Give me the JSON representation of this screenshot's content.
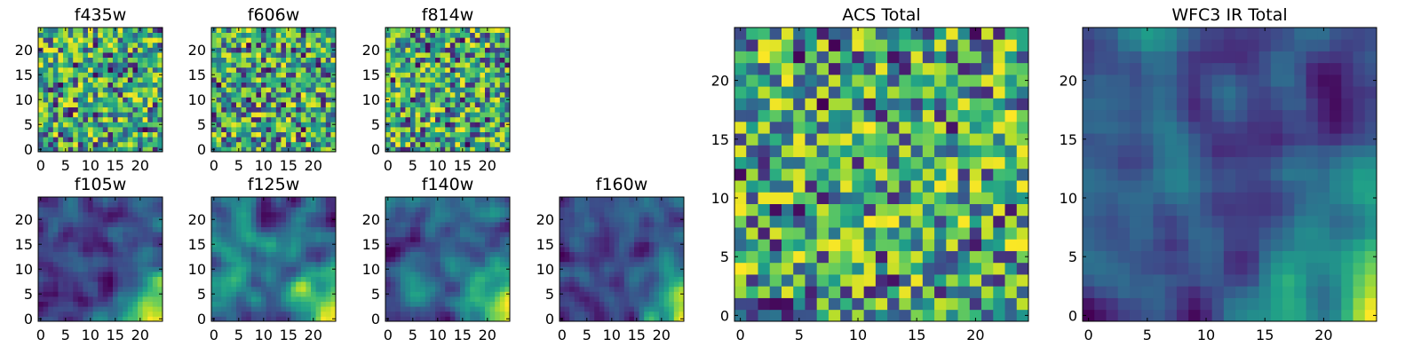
{
  "chart_data": [
    {
      "type": "heatmap",
      "title": "f435w",
      "grid_size": 25,
      "xlim": [
        0,
        24
      ],
      "ylim": [
        0,
        24
      ],
      "x_ticks": [
        "0",
        "5",
        "10",
        "15",
        "20"
      ],
      "y_ticks": [
        "0",
        "5",
        "10",
        "15",
        "20"
      ],
      "colormap": "viridis",
      "texture": "noise",
      "seed": 11
    },
    {
      "type": "heatmap",
      "title": "f606w",
      "grid_size": 25,
      "xlim": [
        0,
        24
      ],
      "ylim": [
        0,
        24
      ],
      "x_ticks": [
        "0",
        "5",
        "10",
        "15",
        "20"
      ],
      "y_ticks": [
        "0",
        "5",
        "10",
        "15",
        "20"
      ],
      "colormap": "viridis",
      "texture": "noise",
      "seed": 23
    },
    {
      "type": "heatmap",
      "title": "f814w",
      "grid_size": 25,
      "xlim": [
        0,
        24
      ],
      "ylim": [
        0,
        24
      ],
      "x_ticks": [
        "0",
        "5",
        "10",
        "15",
        "20"
      ],
      "y_ticks": [
        "0",
        "5",
        "10",
        "15",
        "20"
      ],
      "colormap": "viridis",
      "texture": "noise",
      "seed": 37
    },
    {
      "type": "heatmap",
      "title": "f105w",
      "grid_size": 25,
      "xlim": [
        0,
        24
      ],
      "ylim": [
        0,
        24
      ],
      "x_ticks": [
        "0",
        "5",
        "10",
        "15",
        "20"
      ],
      "y_ticks": [
        "0",
        "5",
        "10",
        "15",
        "20"
      ],
      "colormap": "viridis",
      "texture": "smooth",
      "seed": 41
    },
    {
      "type": "heatmap",
      "title": "f125w",
      "grid_size": 25,
      "xlim": [
        0,
        24
      ],
      "ylim": [
        0,
        24
      ],
      "x_ticks": [
        "0",
        "5",
        "10",
        "15",
        "20"
      ],
      "y_ticks": [
        "0",
        "5",
        "10",
        "15",
        "20"
      ],
      "colormap": "viridis",
      "texture": "smooth",
      "seed": 53
    },
    {
      "type": "heatmap",
      "title": "f140w",
      "grid_size": 25,
      "xlim": [
        0,
        24
      ],
      "ylim": [
        0,
        24
      ],
      "x_ticks": [
        "0",
        "5",
        "10",
        "15",
        "20"
      ],
      "y_ticks": [
        "0",
        "5",
        "10",
        "15",
        "20"
      ],
      "colormap": "viridis",
      "texture": "smooth",
      "seed": 67
    },
    {
      "type": "heatmap",
      "title": "f160w",
      "grid_size": 25,
      "xlim": [
        0,
        24
      ],
      "ylim": [
        0,
        24
      ],
      "x_ticks": [
        "0",
        "5",
        "10",
        "15",
        "20"
      ],
      "y_ticks": [
        "0",
        "5",
        "10",
        "15",
        "20"
      ],
      "colormap": "viridis",
      "texture": "smooth",
      "seed": 79
    },
    {
      "type": "heatmap",
      "title": "ACS Total",
      "grid_size": 25,
      "xlim": [
        0,
        24
      ],
      "ylim": [
        0,
        24
      ],
      "x_ticks": [
        "0",
        "5",
        "10",
        "15",
        "20"
      ],
      "y_ticks": [
        "0",
        "5",
        "10",
        "15",
        "20"
      ],
      "colormap": "viridis",
      "texture": "noise",
      "seed": 97
    },
    {
      "type": "heatmap",
      "title": "WFC3 IR Total",
      "grid_size": 25,
      "xlim": [
        0,
        24
      ],
      "ylim": [
        0,
        24
      ],
      "x_ticks": [
        "0",
        "5",
        "10",
        "15",
        "20"
      ],
      "y_ticks": [
        "0",
        "5",
        "10",
        "15",
        "20"
      ],
      "colormap": "viridis",
      "texture": "smooth",
      "seed": 131
    }
  ]
}
